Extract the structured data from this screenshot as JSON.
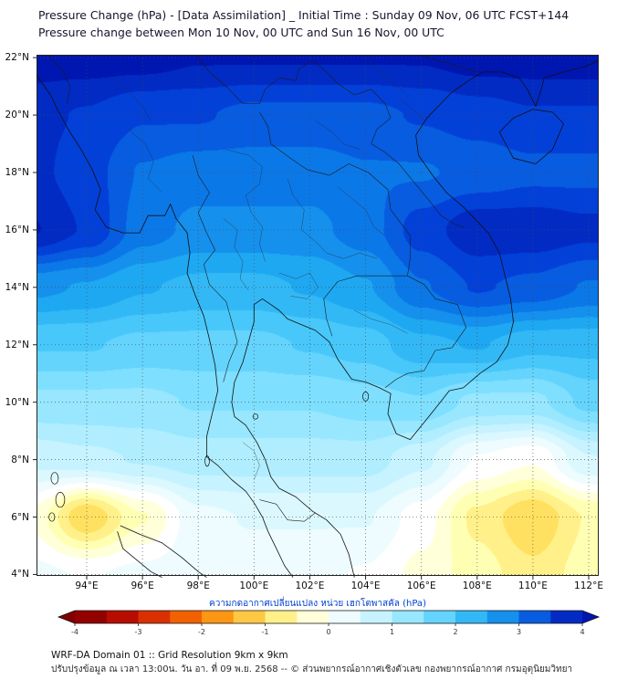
{
  "chart_data": {
    "type": "heatmap",
    "title": "Pressure Change (hPa) - [Data Assimilation] _ Initial Time : Sunday 09 Nov, 06 UTC FCST+144",
    "subtitle": "Pressure change between Mon 10 Nov, 00 UTC and Sun 16 Nov, 00 UTC",
    "projection": {
      "lon_range": [
        92.2,
        112.36
      ],
      "lat_range": [
        3.95,
        22.1
      ]
    },
    "axes": {
      "lat_tick_values": [
        22,
        20,
        18,
        16,
        14,
        12,
        10,
        8,
        6,
        4
      ],
      "lat_tick_labels": [
        "22°N",
        "20°N",
        "18°N",
        "16°N",
        "14°N",
        "12°N",
        "10°N",
        "8°N",
        "6°N",
        "4°N"
      ],
      "lon_tick_values": [
        94,
        96,
        98,
        100,
        102,
        104,
        106,
        108,
        110,
        112
      ],
      "lon_tick_labels": [
        "94°E",
        "96°E",
        "98°E",
        "100°E",
        "102°E",
        "104°E",
        "106°E",
        "108°E",
        "110°E",
        "112°E"
      ],
      "grid_on": true
    },
    "grid": {
      "units": "hPa",
      "lons": [
        92,
        94,
        96,
        98,
        100,
        102,
        104,
        106,
        108,
        110,
        112,
        114
      ],
      "lats": [
        22,
        20,
        18,
        16,
        14,
        12,
        10,
        8,
        6,
        4
      ],
      "values": [
        [
          4.0,
          4.0,
          4.0,
          3.9,
          3.9,
          3.9,
          3.9,
          3.9,
          4.0,
          4.0,
          4.0,
          4.0
        ],
        [
          3.7,
          3.6,
          3.4,
          3.4,
          3.3,
          3.3,
          3.3,
          3.4,
          3.5,
          3.6,
          3.6,
          3.6
        ],
        [
          3.7,
          3.5,
          3.1,
          3.0,
          3.0,
          3.0,
          3.1,
          3.1,
          3.2,
          3.3,
          3.3,
          3.3
        ],
        [
          3.9,
          3.6,
          3.0,
          2.8,
          2.8,
          2.8,
          3.0,
          3.5,
          3.8,
          3.8,
          3.7,
          3.7
        ],
        [
          2.7,
          2.6,
          2.4,
          2.3,
          2.3,
          2.4,
          2.6,
          3.1,
          3.4,
          3.3,
          3.1,
          3.1
        ],
        [
          1.9,
          1.9,
          1.8,
          1.8,
          1.8,
          1.9,
          2.0,
          2.3,
          2.4,
          2.2,
          2.2,
          2.3
        ],
        [
          1.3,
          1.3,
          1.3,
          1.4,
          1.4,
          1.4,
          1.5,
          1.6,
          1.3,
          1.3,
          1.7,
          1.8
        ],
        [
          0.7,
          0.8,
          0.9,
          1.0,
          1.0,
          1.0,
          1.0,
          0.7,
          0.1,
          -0.1,
          0.6,
          0.9
        ],
        [
          -0.2,
          -1.1,
          -0.4,
          0.3,
          0.4,
          0.4,
          0.4,
          0.0,
          -0.7,
          -1.1,
          -0.6,
          -0.1
        ],
        [
          0.2,
          0.1,
          0.2,
          0.3,
          0.2,
          0.2,
          0.1,
          -0.2,
          -0.5,
          -0.8,
          -0.5,
          -0.3
        ]
      ]
    },
    "colorbar": {
      "label": "ความกดอากาศเปลี่ยนแปลง หน่วย เฮกโตพาสคัล (hPa)",
      "min": -4,
      "max": 4,
      "tick_values": [
        -4,
        -3,
        -2,
        -1,
        0,
        1,
        2,
        3,
        4
      ],
      "tick_labels": [
        "-4",
        "-3",
        "-2",
        "-1",
        "0",
        "1",
        "2",
        "3",
        "4"
      ],
      "stops": [
        {
          "v": -4,
          "c": "#7f0000"
        },
        {
          "v": -3.5,
          "c": "#a40000"
        },
        {
          "v": -3,
          "c": "#c81a00"
        },
        {
          "v": -2.5,
          "c": "#e84600"
        },
        {
          "v": -2,
          "c": "#f97c00"
        },
        {
          "v": -1.5,
          "c": "#ffb028"
        },
        {
          "v": -1,
          "c": "#ffe060"
        },
        {
          "v": -0.5,
          "c": "#ffffb4"
        },
        {
          "v": 0,
          "c": "#ffffff"
        },
        {
          "v": 0.5,
          "c": "#dcf8ff"
        },
        {
          "v": 1,
          "c": "#b0eeff"
        },
        {
          "v": 1.5,
          "c": "#7fdfff"
        },
        {
          "v": 2,
          "c": "#48c8fa"
        },
        {
          "v": 2.5,
          "c": "#1ea8f2"
        },
        {
          "v": 3,
          "c": "#0b78e8"
        },
        {
          "v": 3.5,
          "c": "#0340d8"
        },
        {
          "v": 4,
          "c": "#0016b0"
        }
      ]
    }
  },
  "footer": {
    "line1": "WRF-DA Domain 01 :: Grid Resolution 9km x 9km",
    "line2": "ปรับปรุงข้อมูล ณ เวลา 13:00น. วัน อา. ที่ 09 พ.ย. 2568 -- © ส่วนพยากรณ์อากาศเชิงตัวเลข กองพยากรณ์อากาศ กรมอุตุนิยมวิทยา"
  }
}
